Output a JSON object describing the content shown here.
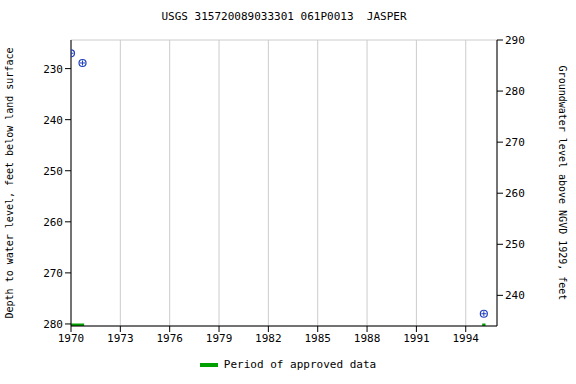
{
  "chart_data": {
    "type": "scatter",
    "title": "USGS 315720089033301 061P0013  JASPER",
    "y_label": "Depth to water level, feet below land surface",
    "y2_label": "Groundwater level above NGVD 1929, feet",
    "x": [
      1970.0,
      1970.7,
      1995.1
    ],
    "values": [
      227.0,
      228.9,
      278.0
    ],
    "color": "#1f3fbf",
    "marker": "circle",
    "xlim": [
      1970,
      1995.9
    ],
    "xticks": [
      1970,
      1973,
      1976,
      1979,
      1982,
      1985,
      1988,
      1991,
      1994
    ],
    "ylim": [
      224.4,
      280.4
    ],
    "yticks": [
      230,
      240,
      250,
      260,
      270,
      280
    ],
    "y2lim": [
      234,
      290
    ],
    "y2ticks": [
      240,
      250,
      260,
      270,
      280,
      290
    ],
    "grid": true,
    "legend": "bottom",
    "approved_periods": {
      "name": "Period of approved data",
      "color": "#00a000",
      "ranges": [
        [
          1970,
          1970.8
        ],
        [
          1995.0,
          1995.2
        ]
      ]
    }
  }
}
